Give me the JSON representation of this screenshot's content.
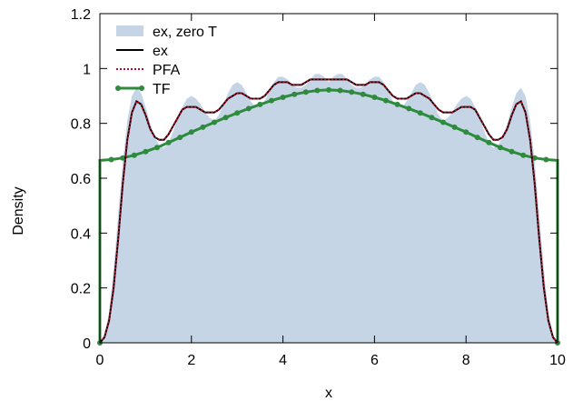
{
  "chart_data": {
    "type": "line",
    "xlabel": "x",
    "ylabel": "Density",
    "xlim": [
      0,
      10
    ],
    "ylim": [
      0,
      1.2
    ],
    "x_ticks": [
      "0",
      "2",
      "4",
      "6",
      "8",
      "10"
    ],
    "y_ticks": [
      "0",
      "0.2",
      "0.4",
      "0.6",
      "0.8",
      "1",
      "1.2"
    ],
    "grid": false,
    "legend_position": "top-left",
    "series": [
      {
        "name": "ex, zero T",
        "style": "filled-area",
        "color": "#c5d5e6",
        "x": [
          0,
          0.1,
          0.2,
          0.3,
          0.4,
          0.5,
          0.6,
          0.7,
          0.8,
          0.9,
          1.0,
          1.1,
          1.2,
          1.3,
          1.4,
          1.5,
          1.6,
          1.7,
          1.8,
          1.9,
          2.0,
          2.1,
          2.2,
          2.3,
          2.4,
          2.5,
          2.6,
          2.7,
          2.8,
          2.9,
          3.0,
          3.1,
          3.2,
          3.3,
          3.4,
          3.5,
          3.6,
          3.7,
          3.8,
          3.9,
          4.0,
          4.1,
          4.2,
          4.3,
          4.4,
          4.5,
          4.6,
          4.7,
          4.8,
          4.9,
          5.0,
          5.1,
          5.2,
          5.3,
          5.4,
          5.5,
          5.6,
          5.7,
          5.8,
          5.9,
          6.0,
          6.1,
          6.2,
          6.3,
          6.4,
          6.5,
          6.6,
          6.7,
          6.8,
          6.9,
          7.0,
          7.1,
          7.2,
          7.3,
          7.4,
          7.5,
          7.6,
          7.7,
          7.8,
          7.9,
          8.0,
          8.1,
          8.2,
          8.3,
          8.4,
          8.5,
          8.6,
          8.7,
          8.8,
          8.9,
          9.0,
          9.1,
          9.2,
          9.3,
          9.4,
          9.5,
          9.6,
          9.7,
          9.8,
          9.9,
          10.0
        ],
        "y": [
          0,
          0.03,
          0.11,
          0.27,
          0.47,
          0.66,
          0.81,
          0.9,
          0.93,
          0.91,
          0.86,
          0.8,
          0.75,
          0.72,
          0.71,
          0.73,
          0.77,
          0.82,
          0.86,
          0.89,
          0.9,
          0.89,
          0.87,
          0.84,
          0.82,
          0.81,
          0.83,
          0.87,
          0.91,
          0.94,
          0.95,
          0.94,
          0.91,
          0.88,
          0.86,
          0.86,
          0.88,
          0.92,
          0.95,
          0.97,
          0.97,
          0.96,
          0.94,
          0.93,
          0.93,
          0.94,
          0.96,
          0.98,
          0.98,
          0.97,
          0.95,
          0.97,
          0.98,
          0.98,
          0.96,
          0.94,
          0.93,
          0.93,
          0.94,
          0.96,
          0.97,
          0.97,
          0.95,
          0.92,
          0.88,
          0.86,
          0.86,
          0.88,
          0.91,
          0.94,
          0.95,
          0.94,
          0.91,
          0.87,
          0.83,
          0.81,
          0.82,
          0.84,
          0.87,
          0.89,
          0.9,
          0.89,
          0.86,
          0.82,
          0.77,
          0.73,
          0.71,
          0.72,
          0.75,
          0.8,
          0.86,
          0.91,
          0.93,
          0.9,
          0.81,
          0.66,
          0.47,
          0.27,
          0.11,
          0.03,
          0
        ]
      },
      {
        "name": "ex",
        "style": "solid",
        "color": "#000000",
        "x": [
          0,
          0.1,
          0.2,
          0.3,
          0.4,
          0.5,
          0.6,
          0.7,
          0.8,
          0.9,
          1.0,
          1.1,
          1.2,
          1.3,
          1.4,
          1.5,
          1.6,
          1.7,
          1.8,
          1.9,
          2.0,
          2.1,
          2.2,
          2.3,
          2.4,
          2.5,
          2.6,
          2.7,
          2.8,
          2.9,
          3.0,
          3.1,
          3.2,
          3.3,
          3.4,
          3.5,
          3.6,
          3.7,
          3.8,
          3.9,
          4.0,
          4.1,
          4.2,
          4.3,
          4.4,
          4.5,
          4.6,
          4.7,
          4.8,
          4.9,
          5.0,
          5.1,
          5.2,
          5.3,
          5.4,
          5.5,
          5.6,
          5.7,
          5.8,
          5.9,
          6.0,
          6.1,
          6.2,
          6.3,
          6.4,
          6.5,
          6.6,
          6.7,
          6.8,
          6.9,
          7.0,
          7.1,
          7.2,
          7.3,
          7.4,
          7.5,
          7.6,
          7.7,
          7.8,
          7.9,
          8.0,
          8.1,
          8.2,
          8.3,
          8.4,
          8.5,
          8.6,
          8.7,
          8.8,
          8.9,
          9.0,
          9.1,
          9.2,
          9.3,
          9.4,
          9.5,
          9.6,
          9.7,
          9.8,
          9.9,
          10.0
        ],
        "y": [
          0,
          0.02,
          0.08,
          0.2,
          0.38,
          0.58,
          0.74,
          0.84,
          0.88,
          0.87,
          0.83,
          0.78,
          0.75,
          0.74,
          0.74,
          0.76,
          0.79,
          0.82,
          0.85,
          0.86,
          0.86,
          0.86,
          0.85,
          0.84,
          0.84,
          0.84,
          0.85,
          0.87,
          0.89,
          0.9,
          0.91,
          0.91,
          0.9,
          0.89,
          0.89,
          0.89,
          0.9,
          0.92,
          0.94,
          0.95,
          0.95,
          0.95,
          0.94,
          0.94,
          0.94,
          0.95,
          0.96,
          0.96,
          0.96,
          0.96,
          0.96,
          0.96,
          0.96,
          0.96,
          0.96,
          0.95,
          0.94,
          0.94,
          0.94,
          0.95,
          0.95,
          0.95,
          0.94,
          0.92,
          0.9,
          0.89,
          0.89,
          0.89,
          0.9,
          0.91,
          0.91,
          0.9,
          0.89,
          0.87,
          0.85,
          0.84,
          0.84,
          0.84,
          0.85,
          0.86,
          0.86,
          0.86,
          0.85,
          0.82,
          0.79,
          0.76,
          0.74,
          0.74,
          0.75,
          0.78,
          0.83,
          0.87,
          0.88,
          0.84,
          0.74,
          0.58,
          0.38,
          0.2,
          0.08,
          0.02,
          0
        ]
      },
      {
        "name": "PFA",
        "style": "dotted",
        "color": "#b0102a",
        "x": [
          0,
          0.1,
          0.2,
          0.3,
          0.4,
          0.5,
          0.6,
          0.7,
          0.8,
          0.9,
          1.0,
          1.1,
          1.2,
          1.3,
          1.4,
          1.5,
          1.6,
          1.7,
          1.8,
          1.9,
          2.0,
          2.1,
          2.2,
          2.3,
          2.4,
          2.5,
          2.6,
          2.7,
          2.8,
          2.9,
          3.0,
          3.1,
          3.2,
          3.3,
          3.4,
          3.5,
          3.6,
          3.7,
          3.8,
          3.9,
          4.0,
          4.1,
          4.2,
          4.3,
          4.4,
          4.5,
          4.6,
          4.7,
          4.8,
          4.9,
          5.0,
          5.1,
          5.2,
          5.3,
          5.4,
          5.5,
          5.6,
          5.7,
          5.8,
          5.9,
          6.0,
          6.1,
          6.2,
          6.3,
          6.4,
          6.5,
          6.6,
          6.7,
          6.8,
          6.9,
          7.0,
          7.1,
          7.2,
          7.3,
          7.4,
          7.5,
          7.6,
          7.7,
          7.8,
          7.9,
          8.0,
          8.1,
          8.2,
          8.3,
          8.4,
          8.5,
          8.6,
          8.7,
          8.8,
          8.9,
          9.0,
          9.1,
          9.2,
          9.3,
          9.4,
          9.5,
          9.6,
          9.7,
          9.8,
          9.9,
          10.0
        ],
        "y": [
          0,
          0.02,
          0.08,
          0.2,
          0.38,
          0.58,
          0.74,
          0.84,
          0.88,
          0.87,
          0.83,
          0.78,
          0.75,
          0.74,
          0.74,
          0.76,
          0.79,
          0.82,
          0.85,
          0.86,
          0.86,
          0.86,
          0.85,
          0.84,
          0.84,
          0.84,
          0.85,
          0.87,
          0.89,
          0.9,
          0.91,
          0.91,
          0.9,
          0.89,
          0.89,
          0.89,
          0.9,
          0.92,
          0.94,
          0.95,
          0.95,
          0.95,
          0.94,
          0.94,
          0.94,
          0.95,
          0.96,
          0.96,
          0.96,
          0.96,
          0.96,
          0.96,
          0.96,
          0.96,
          0.96,
          0.95,
          0.94,
          0.94,
          0.94,
          0.95,
          0.95,
          0.95,
          0.94,
          0.92,
          0.9,
          0.89,
          0.89,
          0.89,
          0.9,
          0.91,
          0.91,
          0.9,
          0.89,
          0.87,
          0.85,
          0.84,
          0.84,
          0.84,
          0.85,
          0.86,
          0.86,
          0.86,
          0.85,
          0.82,
          0.79,
          0.76,
          0.74,
          0.74,
          0.75,
          0.78,
          0.83,
          0.87,
          0.88,
          0.84,
          0.74,
          0.58,
          0.38,
          0.2,
          0.08,
          0.02,
          0
        ]
      },
      {
        "name": "TF",
        "style": "line-points",
        "color": "#2e8b3e",
        "x": [
          0,
          0,
          0.25,
          0.5,
          0.75,
          1.0,
          1.25,
          1.5,
          1.75,
          2.0,
          2.25,
          2.5,
          2.75,
          3.0,
          3.25,
          3.5,
          3.75,
          4.0,
          4.25,
          4.5,
          4.75,
          5.0,
          5.25,
          5.5,
          5.75,
          6.0,
          6.25,
          6.5,
          6.75,
          7.0,
          7.25,
          7.5,
          7.75,
          8.0,
          8.25,
          8.5,
          8.75,
          9.0,
          9.25,
          9.5,
          9.75,
          10.0,
          10.0
        ],
        "y": [
          0,
          0.665,
          0.668,
          0.674,
          0.684,
          0.697,
          0.712,
          0.73,
          0.749,
          0.768,
          0.786,
          0.804,
          0.821,
          0.838,
          0.854,
          0.869,
          0.883,
          0.895,
          0.906,
          0.914,
          0.92,
          0.922,
          0.92,
          0.914,
          0.906,
          0.895,
          0.883,
          0.869,
          0.854,
          0.838,
          0.821,
          0.804,
          0.786,
          0.768,
          0.749,
          0.73,
          0.712,
          0.697,
          0.684,
          0.674,
          0.668,
          0.665,
          0
        ]
      }
    ]
  }
}
